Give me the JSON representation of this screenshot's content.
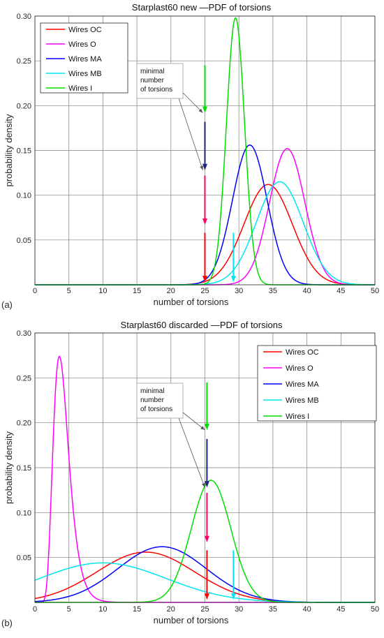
{
  "chart_data": [
    {
      "type": "line",
      "panel_label": "(a)",
      "title": "Starplast60 new —PDF of torsions",
      "xlabel": "number of torsions",
      "ylabel": "probability density",
      "xlim": [
        0,
        50
      ],
      "ylim": [
        0,
        0.3
      ],
      "x_ticks": [
        "0",
        "5",
        "10",
        "15",
        "20",
        "25",
        "30",
        "35",
        "40",
        "45",
        "50"
      ],
      "y_ticks": [
        "0.05",
        "0.10",
        "0.15",
        "0.20",
        "0.25",
        "0.30"
      ],
      "grid": true,
      "legend_position": "top-left",
      "annotation": [
        "minimal",
        "number",
        "of torsions"
      ],
      "series": [
        {
          "name": "Wires OC",
          "color": "#ff0000",
          "dist": "normal",
          "mean": 34.3,
          "sd": 3.55,
          "peak": 0.112
        },
        {
          "name": "Wires O",
          "color": "#ff00ff",
          "dist": "normal",
          "mean": 37.1,
          "sd": 2.6,
          "peak": 0.152
        },
        {
          "name": "Wires MA",
          "color": "#0000ff",
          "dist": "normal",
          "mean": 31.6,
          "sd": 2.55,
          "peak": 0.156
        },
        {
          "name": "Wires MB",
          "color": "#00e5ee",
          "dist": "normal",
          "mean": 36.0,
          "sd": 3.45,
          "peak": 0.115
        },
        {
          "name": "Wires I",
          "color": "#00dd00",
          "dist": "normal",
          "mean": 29.5,
          "sd": 1.33,
          "peak": 0.298
        }
      ],
      "markers": [
        {
          "x": 25,
          "y_top": 0.245,
          "y_tip": 0.192,
          "color": "#00dd00"
        },
        {
          "x": 25,
          "y_top": 0.182,
          "y_tip": 0.128,
          "color": "#1a237e"
        },
        {
          "x": 25,
          "y_top": 0.122,
          "y_tip": 0.067,
          "color": "#ff0066"
        },
        {
          "x": 25,
          "y_top": 0.058,
          "y_tip": 0.003,
          "color": "#ff0000"
        },
        {
          "x": 29.2,
          "y_top": 0.058,
          "y_tip": 0.003,
          "color": "#00e5ee"
        }
      ]
    },
    {
      "type": "line",
      "panel_label": "(b)",
      "title": "Starplast60 discarded —PDF of torsions",
      "xlabel": "number of torsions",
      "ylabel": "probability density",
      "xlim": [
        0,
        50
      ],
      "ylim": [
        0,
        0.3
      ],
      "x_ticks": [
        "0",
        "5",
        "10",
        "15",
        "20",
        "25",
        "30",
        "35",
        "40",
        "45",
        "50"
      ],
      "y_ticks": [
        "0.05",
        "0.10",
        "0.15",
        "0.20",
        "0.25",
        "0.30"
      ],
      "grid": true,
      "legend_position": "top-right",
      "annotation": [
        "minimal",
        "number",
        "of torsions"
      ],
      "series": [
        {
          "name": "Wires OC",
          "color": "#ff0000",
          "dist": "normal",
          "mean": 16.3,
          "sd": 7.2,
          "peak": 0.056
        },
        {
          "name": "Wires O",
          "color": "#ff00ff",
          "dist": "lognormal",
          "mode": 3.6,
          "sigma": 0.32,
          "peak": 0.274
        },
        {
          "name": "Wires MA",
          "color": "#0000ff",
          "dist": "normal",
          "mean": 18.7,
          "sd": 6.5,
          "peak": 0.062
        },
        {
          "name": "Wires MB",
          "color": "#00e5ee",
          "dist": "normal",
          "mean": 10.0,
          "sd": 9.3,
          "peak": 0.044
        },
        {
          "name": "Wires I",
          "color": "#00dd00",
          "dist": "normal",
          "mean": 25.9,
          "sd": 2.9,
          "peak": 0.136
        }
      ],
      "markers": [
        {
          "x": 25.3,
          "y_top": 0.245,
          "y_tip": 0.192,
          "color": "#00dd00"
        },
        {
          "x": 25.3,
          "y_top": 0.182,
          "y_tip": 0.128,
          "color": "#1a237e"
        },
        {
          "x": 25.3,
          "y_top": 0.122,
          "y_tip": 0.067,
          "color": "#ff0066"
        },
        {
          "x": 25.3,
          "y_top": 0.058,
          "y_tip": 0.003,
          "color": "#ff0000"
        },
        {
          "x": 29.2,
          "y_top": 0.058,
          "y_tip": 0.003,
          "color": "#00e5ee"
        }
      ]
    }
  ]
}
